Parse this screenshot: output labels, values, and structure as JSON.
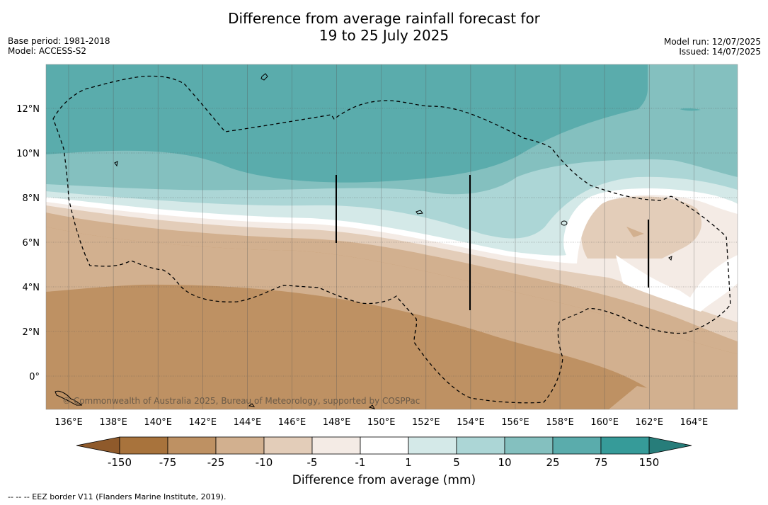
{
  "title": {
    "line1": "Difference from average rainfall forecast for",
    "line2": "19 to 25 July 2025"
  },
  "meta_left": {
    "base_period": "Base period: 1981-2018",
    "model": "Model: ACCESS-S2"
  },
  "meta_right": {
    "model_run": "Model run: 12/07/2025",
    "issued": "Issued: 14/07/2025"
  },
  "map": {
    "lon_labels": [
      "136°E",
      "138°E",
      "140°E",
      "142°E",
      "144°E",
      "146°E",
      "148°E",
      "150°E",
      "152°E",
      "154°E",
      "156°E",
      "158°E",
      "160°E",
      "162°E",
      "164°E"
    ],
    "lat_labels": [
      "12°N",
      "10°N",
      "8°N",
      "6°N",
      "4°N",
      "2°N",
      "0°"
    ],
    "copyright": "© Commonwealth of Australia 2025, Bureau of Meteorology, supported by COSPPac"
  },
  "colorbar": {
    "ticks": [
      "-150",
      "-75",
      "-25",
      "-10",
      "-5",
      "-1",
      "1",
      "5",
      "10",
      "25",
      "75",
      "150"
    ],
    "colors": [
      "#a8733c",
      "#be9163",
      "#d2b08f",
      "#e3cdb9",
      "#f4ebe5",
      "#ffffff",
      "#d4e9e8",
      "#acd6d6",
      "#84c0bf",
      "#5aacac",
      "#369b99"
    ],
    "extend_low": "#8f5a2b",
    "extend_high": "#277d7a",
    "title": "Difference from average (mm)"
  },
  "footnote": "--  --  -- EEZ border V11 (Flanders Marine Institute, 2019)."
}
